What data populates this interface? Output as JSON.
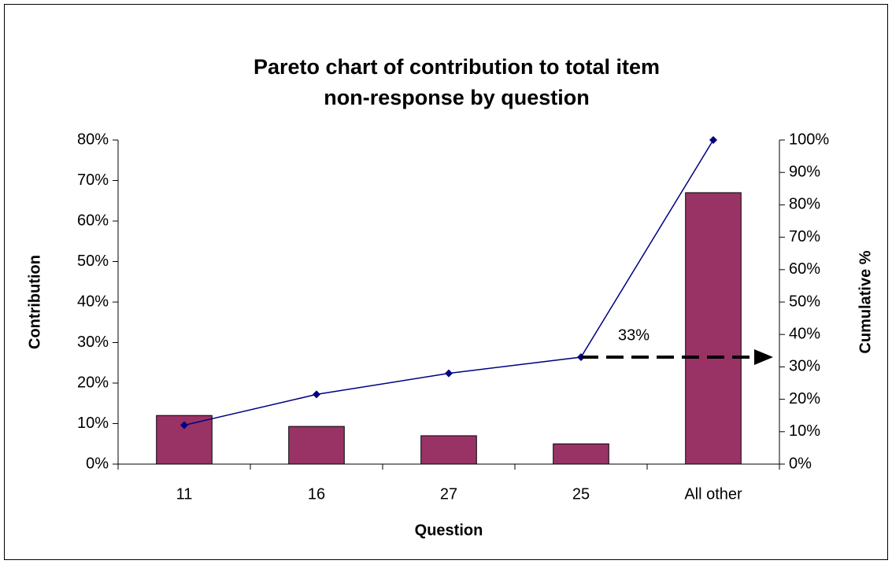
{
  "chart_data": {
    "type": "pareto",
    "title": [
      "Pareto chart of contribution to total item",
      "non-response by question"
    ],
    "x_label": "Question",
    "y_label": "Contribution",
    "y2_label": "Cumulative %",
    "categories": [
      "11",
      "16",
      "27",
      "25",
      "All other"
    ],
    "series": [
      {
        "type": "bar",
        "color": "#993366",
        "values": [
          12,
          9.3,
          7,
          5,
          67
        ]
      },
      {
        "type": "line",
        "axis": "y2",
        "color": "#000080",
        "values": [
          12,
          21.5,
          28,
          33,
          100
        ]
      }
    ],
    "ylim": [
      0,
      80
    ],
    "yticks": [
      {
        "value": 0,
        "label": "0%"
      },
      {
        "value": 10,
        "label": "10%"
      },
      {
        "value": 20,
        "label": "20%"
      },
      {
        "value": 30,
        "label": "30%"
      },
      {
        "value": 40,
        "label": "40%"
      },
      {
        "value": 50,
        "label": "50%"
      },
      {
        "value": 60,
        "label": "60%"
      },
      {
        "value": 70,
        "label": "70%"
      },
      {
        "value": 80,
        "label": "80%"
      }
    ],
    "y2lim": [
      0,
      100
    ],
    "y2ticks": [
      {
        "value": 0,
        "label": "0%"
      },
      {
        "value": 10,
        "label": "10%"
      },
      {
        "value": 20,
        "label": "20%"
      },
      {
        "value": 30,
        "label": "30%"
      },
      {
        "value": 40,
        "label": "40%"
      },
      {
        "value": 50,
        "label": "50%"
      },
      {
        "value": 60,
        "label": "60%"
      },
      {
        "value": 70,
        "label": "70%"
      },
      {
        "value": 80,
        "label": "80%"
      },
      {
        "value": 90,
        "label": "90%"
      },
      {
        "value": 100,
        "label": "100%"
      }
    ],
    "grid": false,
    "annotations": [
      {
        "text": "33%",
        "series": 1,
        "index": 3
      }
    ]
  }
}
